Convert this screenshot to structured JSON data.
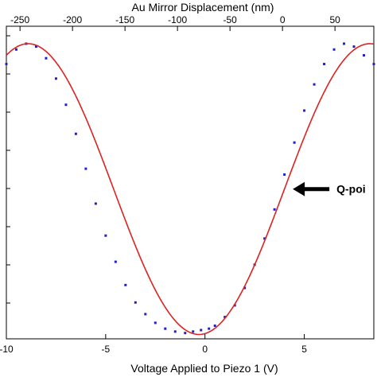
{
  "chart_data": {
    "type": "scatter",
    "xlabel": "Voltage Applied to Piezo 1 (V)",
    "x2label": "Au Mirror Displacement (nm)",
    "xlim": [
      -10,
      8.5
    ],
    "x2lim": [
      -263,
      87
    ],
    "x_ticks": [
      "-10",
      "-5",
      "0",
      "5"
    ],
    "x_tick_values": [
      -10,
      -5,
      0,
      5
    ],
    "x2_ticks": [
      "-250",
      "-200",
      "-150",
      "-100",
      "-50",
      "0",
      "50"
    ],
    "x2_tick_values": [
      -250,
      -200,
      -150,
      -100,
      -50,
      0,
      50
    ],
    "y_ticks_visible": false,
    "grid": false,
    "series": [
      {
        "kind": "scatter",
        "color": "#1f1fd0",
        "x": [
          -10.0,
          -9.5,
          -9.0,
          -8.5,
          -8.0,
          -7.5,
          -7.0,
          -6.5,
          -6.0,
          -5.5,
          -5.0,
          -4.5,
          -4.0,
          -3.5,
          -3.0,
          -2.5,
          -2.0,
          -1.5,
          -1.0,
          -0.6,
          -0.2,
          0.2,
          0.5,
          1.0,
          1.5,
          2.0,
          2.5,
          3.0,
          3.5,
          4.0,
          4.5,
          5.0,
          5.5,
          6.0,
          6.5,
          7.0,
          7.5,
          8.0,
          8.5
        ],
        "y": [
          0.93,
          0.98,
          1.0,
          0.99,
          0.95,
          0.88,
          0.79,
          0.69,
          0.57,
          0.45,
          0.34,
          0.25,
          0.17,
          0.11,
          0.07,
          0.04,
          0.02,
          0.01,
          0.005,
          0.01,
          0.015,
          0.02,
          0.03,
          0.06,
          0.1,
          0.16,
          0.24,
          0.33,
          0.43,
          0.55,
          0.66,
          0.77,
          0.86,
          0.93,
          0.98,
          1.0,
          0.99,
          0.96,
          0.93
        ]
      },
      {
        "kind": "fit",
        "color": "#dd2222",
        "period_V": 17.2,
        "min_at_V": -0.3,
        "amplitude": 0.5,
        "offset": 0.5
      }
    ],
    "annotations": [
      {
        "text": "Q-poi",
        "arrow_to_V": 4.1,
        "arrow_to_y": 0.5
      }
    ]
  }
}
